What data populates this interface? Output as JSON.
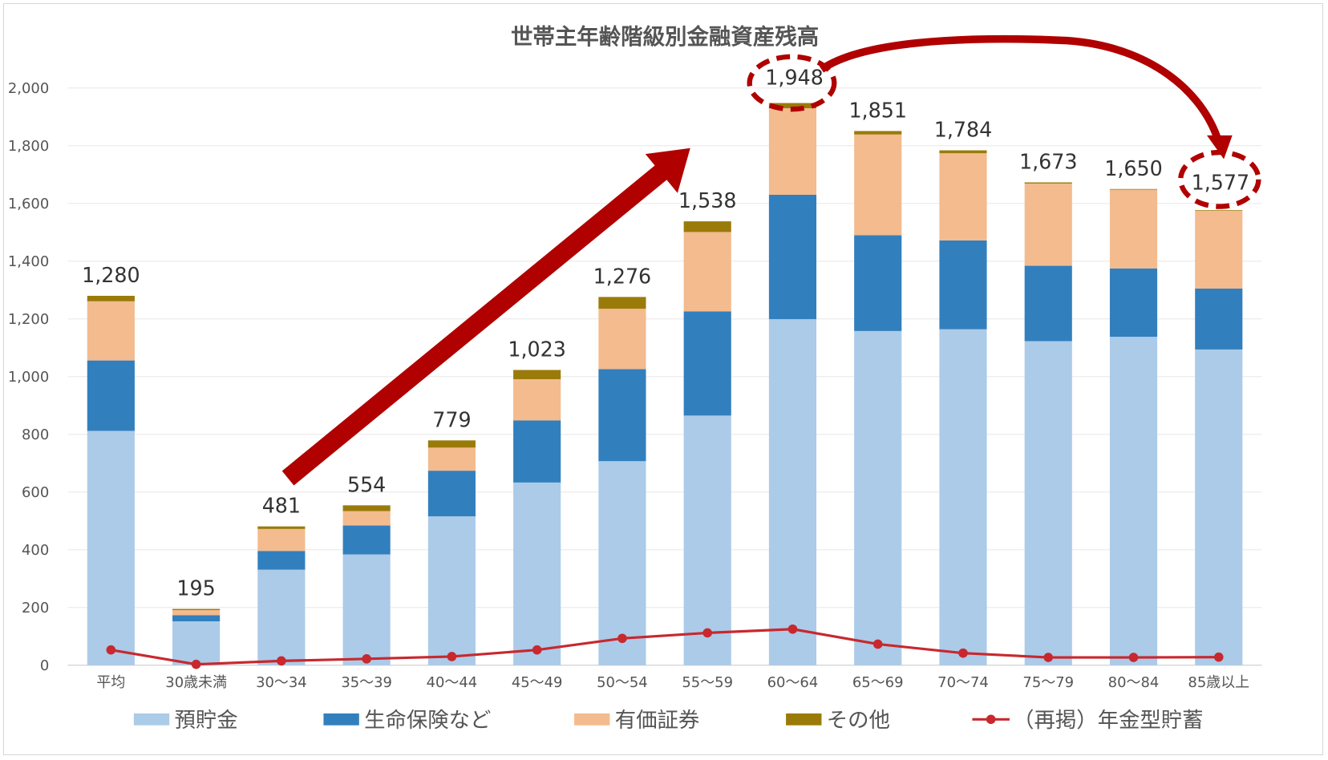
{
  "chart_data": {
    "type": "bar",
    "stacked": true,
    "title": "世帯主年齢階級別金融資産残高",
    "xlabel": "",
    "ylabel": "",
    "ylim": [
      0,
      2000
    ],
    "yticks": [
      "0",
      "200",
      "400",
      "600",
      "800",
      "1,000",
      "1,200",
      "1,400",
      "1,600",
      "1,800",
      "2,000"
    ],
    "ytick_values": [
      0,
      200,
      400,
      600,
      800,
      1000,
      1200,
      1400,
      1600,
      1800,
      2000
    ],
    "grid": true,
    "legend_position": "bottom",
    "categories": [
      "平均",
      "30歳未満",
      "30～34",
      "35～39",
      "40～44",
      "45～49",
      "50～54",
      "55～59",
      "60～64",
      "65～69",
      "70～74",
      "75～79",
      "80～84",
      "85歳以上"
    ],
    "series": [
      {
        "name": "預貯金",
        "color": "#abcbe8",
        "values": [
          812,
          152,
          331,
          384,
          516,
          633,
          707,
          865,
          1199,
          1158,
          1164,
          1123,
          1138,
          1094
        ]
      },
      {
        "name": "生命保険など",
        "color": "#327fbe",
        "values": [
          244,
          21,
          65,
          100,
          158,
          215,
          319,
          361,
          431,
          332,
          308,
          261,
          237,
          211
        ]
      },
      {
        "name": "有価証券",
        "color": "#f3bb8e",
        "values": [
          205,
          18,
          76,
          50,
          80,
          143,
          209,
          275,
          300,
          349,
          302,
          285,
          273,
          270
        ]
      },
      {
        "name": "その他",
        "color": "#9a7b0a",
        "values": [
          19,
          4,
          9,
          20,
          25,
          32,
          41,
          37,
          18,
          12,
          10,
          4,
          2,
          2
        ]
      }
    ],
    "line_series": {
      "name": "（再掲）年金型貯蓄",
      "color": "#c8282e",
      "values": [
        53,
        3,
        15,
        22,
        30,
        53,
        93,
        112,
        125,
        73,
        42,
        27,
        27,
        28
      ]
    },
    "totals": [
      "1,280",
      "195",
      "481",
      "554",
      "779",
      "1,023",
      "1,276",
      "1,538",
      "1,948",
      "1,851",
      "1,784",
      "1,673",
      "1,650",
      "1,577"
    ],
    "total_values": [
      1280,
      195,
      481,
      554,
      779,
      1023,
      1276,
      1538,
      1948,
      1851,
      1784,
      1673,
      1650,
      1577
    ],
    "annotations": {
      "highlighted": [
        "1,948",
        "1,577"
      ],
      "arrow_color": "#b00000"
    }
  }
}
